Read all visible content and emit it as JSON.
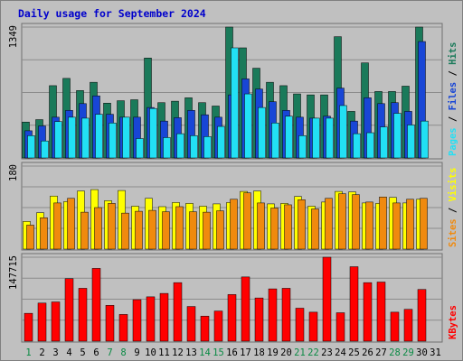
{
  "chart_data": {
    "type": "bar",
    "title": "Daily usage for September 2024",
    "categories": [
      "1",
      "2",
      "3",
      "4",
      "5",
      "6",
      "7",
      "8",
      "9",
      "10",
      "11",
      "12",
      "13",
      "14",
      "15",
      "16",
      "17",
      "18",
      "19",
      "20",
      "21",
      "22",
      "23",
      "24",
      "25",
      "26",
      "27",
      "28",
      "29",
      "30",
      "31"
    ],
    "weekend_days": [
      "1",
      "7",
      "8",
      "14",
      "15",
      "21",
      "22",
      "28",
      "29"
    ],
    "panels": [
      {
        "id": "hits",
        "ymax_label": "1349",
        "ymax": 1349,
        "labels": [
          "Pages",
          "Files",
          "Hits"
        ],
        "series": [
          {
            "name": "Hits",
            "color": "#1a7a5a",
            "values": [
              370,
              395,
              745,
              820,
              695,
              780,
              565,
              590,
              600,
              1030,
              570,
              585,
              620,
              570,
              535,
              1349,
              1135,
              925,
              780,
              745,
              660,
              650,
              650,
              1250,
              480,
              980,
              685,
              685,
              740,
              1349,
              0
            ]
          },
          {
            "name": "Files",
            "color": "#1846d6",
            "values": [
              280,
              330,
              420,
              490,
              560,
              640,
              450,
              420,
              420,
              520,
              380,
              415,
              490,
              445,
              420,
              650,
              815,
              710,
              580,
              490,
              420,
              410,
              430,
              720,
              380,
              620,
              560,
              570,
              480,
              1200,
              0
            ]
          },
          {
            "name": "Pages",
            "color": "#22e0f4",
            "values": [
              230,
              175,
              375,
              420,
              410,
              450,
              360,
              420,
              200,
              510,
              210,
              250,
              230,
              220,
              325,
              1135,
              660,
              520,
              360,
              430,
              230,
              410,
              410,
              540,
              250,
              260,
              320,
              460,
              340,
              380,
              0
            ]
          }
        ]
      },
      {
        "id": "visits",
        "ymax_label": "180",
        "ymax": 180,
        "labels": [
          "Sites",
          "Visits"
        ],
        "series": [
          {
            "name": "Visits",
            "color": "#ffff00",
            "values": [
              60,
              79,
              115,
              103,
              126,
              129,
              105,
              127,
              93,
              110,
              92,
              101,
              99,
              93,
              98,
              101,
              125,
              126,
              98,
              99,
              114,
              93,
              102,
              125,
              124,
              100,
              99,
              112,
              100,
              108,
              0
            ]
          },
          {
            "name": "Sites",
            "color": "#f08a0e",
            "values": [
              52,
              68,
              100,
              110,
              80,
              90,
              99,
              78,
              82,
              84,
              81,
              92,
              81,
              80,
              83,
              108,
              122,
              100,
              89,
              96,
              107,
              87,
              110,
              120,
              118,
              102,
              113,
              100,
              108,
              110,
              0
            ]
          }
        ]
      },
      {
        "id": "kbytes",
        "ymax_label": "147715",
        "ymax": 147715,
        "labels": [
          "KBytes"
        ],
        "series": [
          {
            "name": "KBytes",
            "color": "#ff0000",
            "values": [
              49000,
              67000,
              69000,
              110000,
              93000,
              128000,
              63000,
              47000,
              73000,
              78000,
              84000,
              103000,
              61000,
              44000,
              53000,
              82000,
              113000,
              76000,
              92000,
              93000,
              58000,
              51000,
              147715,
              50000,
              131000,
              103000,
              104000,
              51000,
              56000,
              91000,
              0
            ]
          }
        ]
      }
    ]
  }
}
